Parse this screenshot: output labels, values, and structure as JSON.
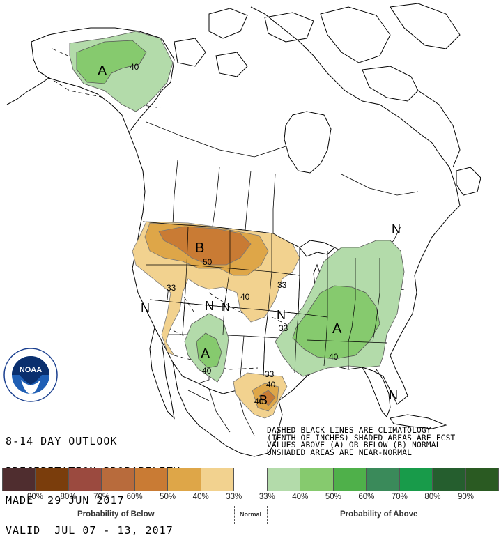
{
  "header": {
    "line1": "8-14 DAY OUTLOOK",
    "line2": "PRECIPITATION PROBABILITY",
    "line3": "MADE  29 JUN 2017",
    "line4": "VALID  JUL 07 - 13, 2017"
  },
  "explanation": {
    "line1": "DASHED BLACK LINES ARE CLIMATOLOGY",
    "line2": "(TENTH OF INCHES) SHADED AREAS ARE FCST",
    "line3": "VALUES ABOVE (A) OR BELOW (B) NORMAL",
    "line4": "UNSHADED AREAS ARE NEAR-NORMAL"
  },
  "logo": {
    "text": "NOAA"
  },
  "map_labels": {
    "alaska_A": "A",
    "alaska_40": "40",
    "plains_B": "B",
    "plains_50": "50",
    "plains_40": "40",
    "west_33": "33",
    "midwest_33": "33",
    "west_N": "N",
    "rockies_N": "N",
    "central_N": "N",
    "northeast_N": "N",
    "florida_N": "N",
    "southwest_A": "A",
    "southwest_40": "40",
    "southwest_N": "N",
    "east_A": "A",
    "east_40": "40",
    "east_33": "33",
    "texas_B": "B",
    "texas_40": "40",
    "texas_33": "33",
    "texas_40b": "40"
  },
  "legend": {
    "colors": [
      "#4f2d2f",
      "#7a3d0c",
      "#9b4a3f",
      "#b86b3c",
      "#c97b34",
      "#dea648",
      "#f2d28f",
      "#ffffff",
      "#b3dbaa",
      "#86ca6e",
      "#4fb04a",
      "#3a8a5a",
      "#189b4a",
      "#255e2e",
      "#2a5a22"
    ],
    "ticks": [
      "90%",
      "80%",
      "70%",
      "60%",
      "50%",
      "40%",
      "33%",
      "33%",
      "40%",
      "50%",
      "60%",
      "70%",
      "80%",
      "90%"
    ],
    "below_label": "Probability of Below",
    "normal_label": "Normal",
    "above_label": "Probability of Above"
  }
}
